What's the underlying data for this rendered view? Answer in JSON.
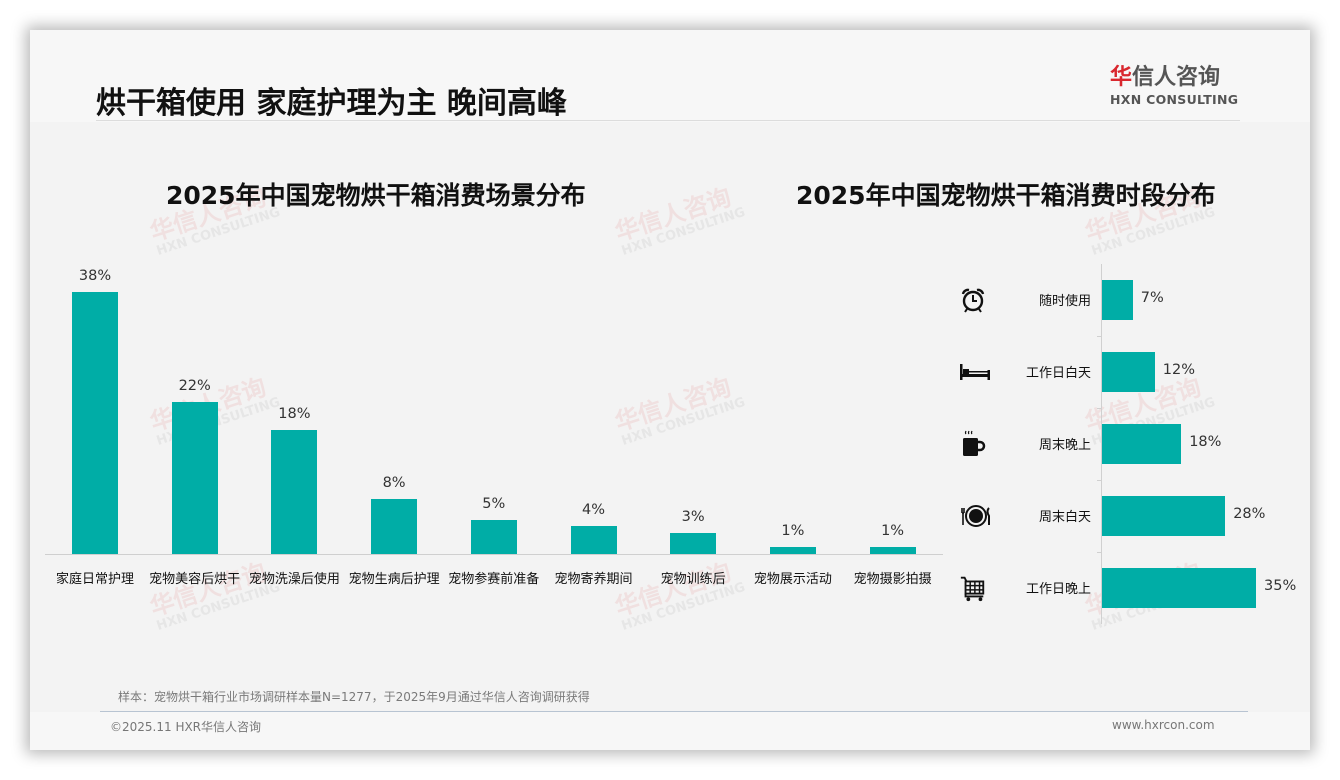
{
  "page": {
    "title": "烘干箱使用 家庭护理为主 晚间高峰"
  },
  "logo": {
    "cn_first": "华",
    "cn_rest": "信人咨询",
    "en": "HXN CONSULTING"
  },
  "watermark": {
    "cn": "华信人咨询",
    "en": "HXN CONSULTING"
  },
  "colors": {
    "bar": "#00ada6",
    "logo_red": "#d9272e"
  },
  "chart_data": [
    {
      "type": "bar",
      "orientation": "vertical",
      "title": "2025年中国宠物烘干箱消费场景分布",
      "categories": [
        "家庭日常护理",
        "宠物美容后烘干",
        "宠物洗澡后使用",
        "宠物生病后护理",
        "宠物参赛前准备",
        "宠物寄养期间",
        "宠物训练后",
        "宠物展示活动",
        "宠物摄影拍摄"
      ],
      "values": [
        38,
        22,
        18,
        8,
        5,
        4,
        3,
        1,
        1
      ],
      "value_labels": [
        "38%",
        "22%",
        "18%",
        "8%",
        "5%",
        "4%",
        "3%",
        "1%",
        "1%"
      ],
      "unit": "%",
      "xlabel": "",
      "ylabel": "",
      "ylim": [
        0,
        40
      ],
      "grid": false,
      "legend": "none",
      "color": "#00ada6"
    },
    {
      "type": "bar",
      "orientation": "horizontal",
      "title": "2025年中国宠物烘干箱消费时段分布",
      "categories": [
        "随时使用",
        "工作日白天",
        "周末晚上",
        "周末白天",
        "工作日晚上"
      ],
      "values": [
        7,
        12,
        18,
        28,
        35
      ],
      "value_labels": [
        "7%",
        "12%",
        "18%",
        "28%",
        "35%"
      ],
      "icons": [
        "alarm-clock-icon",
        "bed-icon",
        "hot-drink-icon",
        "dining-icon",
        "shopping-cart-icon"
      ],
      "unit": "%",
      "xlim": [
        0,
        35
      ],
      "grid": false,
      "legend": "none",
      "color": "#00ada6"
    }
  ],
  "footer": {
    "note": "样本：宠物烘干箱行业市场调研样本量N=1277，于2025年9月通过华信人咨询调研获得",
    "copyright": "©2025.11 HXR华信人咨询",
    "website": "www.hxrcon.com"
  }
}
